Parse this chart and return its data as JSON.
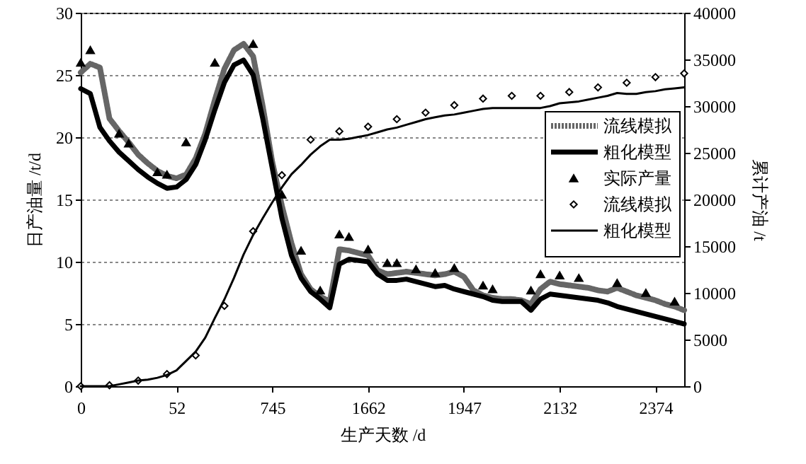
{
  "chart_data": {
    "type": "line",
    "xlabel": "生产天数 /d",
    "ylabel": "日产油量 /t/d",
    "y2label": "累计产油 /t",
    "categories": [
      "0",
      null,
      null,
      null,
      null,
      null,
      null,
      null,
      null,
      null,
      "52",
      null,
      null,
      null,
      null,
      null,
      null,
      null,
      null,
      null,
      "745",
      null,
      null,
      null,
      null,
      null,
      null,
      null,
      null,
      null,
      "1662",
      null,
      null,
      null,
      null,
      null,
      null,
      null,
      null,
      null,
      "1947",
      null,
      null,
      null,
      null,
      null,
      null,
      null,
      null,
      null,
      "2132",
      null,
      null,
      null,
      null,
      null,
      null,
      null,
      null,
      null,
      "2374",
      null,
      null,
      null
    ],
    "ylim": [
      0,
      30
    ],
    "yticks": [
      0,
      5,
      10,
      15,
      20,
      25,
      30
    ],
    "y2lim": [
      0,
      40000
    ],
    "y2ticks": [
      0,
      5000,
      10000,
      15000,
      20000,
      25000,
      30000,
      35000,
      40000
    ],
    "grid": "y",
    "legend": "right",
    "series": [
      {
        "name": "流线模拟",
        "type": "line",
        "color": "#666666",
        "line_style": "dotted",
        "values": [
          25.2,
          25.9,
          25.6,
          21.5,
          20.5,
          19.6,
          18.6,
          17.9,
          17.3,
          16.9,
          16.7,
          17.0,
          18.3,
          20.3,
          23.0,
          25.5,
          27.0,
          27.5,
          26.5,
          22.5,
          18.0,
          14.5,
          11.5,
          9.0,
          7.8,
          7.2,
          6.8,
          11.0,
          10.9,
          10.7,
          10.5,
          9.3,
          9.0,
          9.1,
          9.2,
          9.1,
          9.0,
          8.9,
          9.0,
          9.2,
          8.8,
          7.7,
          7.3,
          7.1,
          7.0,
          7.0,
          6.9,
          6.6,
          7.8,
          8.4,
          8.2,
          8.1,
          8.0,
          7.9,
          7.7,
          7.6,
          7.9,
          7.6,
          7.3,
          7.1,
          6.9,
          6.6,
          6.4,
          6.1
        ]
      },
      {
        "name": "粗化模型",
        "color": "#000000",
        "line_style": "solid",
        "values": [
          23.9,
          23.5,
          20.8,
          19.7,
          18.8,
          18.1,
          17.4,
          16.8,
          16.3,
          15.9,
          16.0,
          16.6,
          17.8,
          19.8,
          22.2,
          24.4,
          25.8,
          26.2,
          25.0,
          21.5,
          17.5,
          13.5,
          10.5,
          8.7,
          7.6,
          7.0,
          6.3,
          9.8,
          10.2,
          10.1,
          10.0,
          9.0,
          8.5,
          8.5,
          8.6,
          8.4,
          8.2,
          8.0,
          8.1,
          7.8,
          7.6,
          7.4,
          7.2,
          6.9,
          6.8,
          6.8,
          6.8,
          6.1,
          7.0,
          7.4,
          7.3,
          7.2,
          7.1,
          7.0,
          6.9,
          6.7,
          6.4,
          6.2,
          6.0,
          5.8,
          5.6,
          5.4,
          5.2,
          5.0
        ]
      },
      {
        "name": "实际产量",
        "type": "scatter",
        "color": "#000000",
        "marker": "triangle",
        "values": [
          26.0,
          27.0,
          null,
          null,
          20.3,
          19.5,
          null,
          null,
          17.2,
          17.0,
          null,
          19.6,
          null,
          null,
          26.0,
          null,
          null,
          null,
          27.5,
          null,
          null,
          15.4,
          null,
          10.9,
          null,
          7.7,
          null,
          12.2,
          12.0,
          null,
          11.0,
          null,
          9.9,
          9.9,
          null,
          9.4,
          null,
          9.1,
          null,
          9.5,
          null,
          null,
          8.1,
          7.8,
          null,
          null,
          null,
          7.7,
          9.0,
          null,
          8.9,
          null,
          8.7,
          null,
          null,
          null,
          8.3,
          null,
          null,
          7.5,
          null,
          null,
          6.8,
          null
        ]
      },
      {
        "name": "流线模拟",
        "type": "scatter",
        "color": "#000000",
        "marker": "diamond",
        "axis": "y2",
        "values": [
          0,
          null,
          null,
          100,
          null,
          null,
          600,
          null,
          null,
          1300,
          null,
          null,
          3300,
          null,
          null,
          8600,
          null,
          null,
          16600,
          null,
          null,
          22600,
          null,
          null,
          26400,
          null,
          null,
          27300,
          null,
          null,
          27800,
          null,
          null,
          28600,
          null,
          null,
          29300,
          null,
          null,
          30100,
          null,
          null,
          30800,
          null,
          null,
          31100,
          null,
          null,
          31100,
          null,
          null,
          31500,
          null,
          null,
          32000,
          null,
          null,
          32500,
          null,
          null,
          33100,
          null,
          null,
          33500
        ]
      },
      {
        "name": "粗化模型",
        "color": "#000000",
        "line_style": "solid",
        "axis": "y2",
        "values": [
          0,
          0,
          0,
          0,
          200,
          400,
          600,
          700,
          900,
          1200,
          1700,
          2700,
          3700,
          5200,
          7300,
          9300,
          11600,
          14100,
          16200,
          18000,
          19700,
          21300,
          22700,
          23700,
          24800,
          25700,
          26400,
          26400,
          26500,
          26700,
          26900,
          27200,
          27500,
          27700,
          28000,
          28300,
          28600,
          28800,
          29000,
          29100,
          29300,
          29500,
          29700,
          29800,
          29800,
          29800,
          29800,
          29800,
          29800,
          30000,
          30300,
          30400,
          30500,
          30700,
          30900,
          31100,
          31400,
          31300,
          31300,
          31500,
          31600,
          31800,
          31900,
          32000
        ]
      }
    ]
  }
}
